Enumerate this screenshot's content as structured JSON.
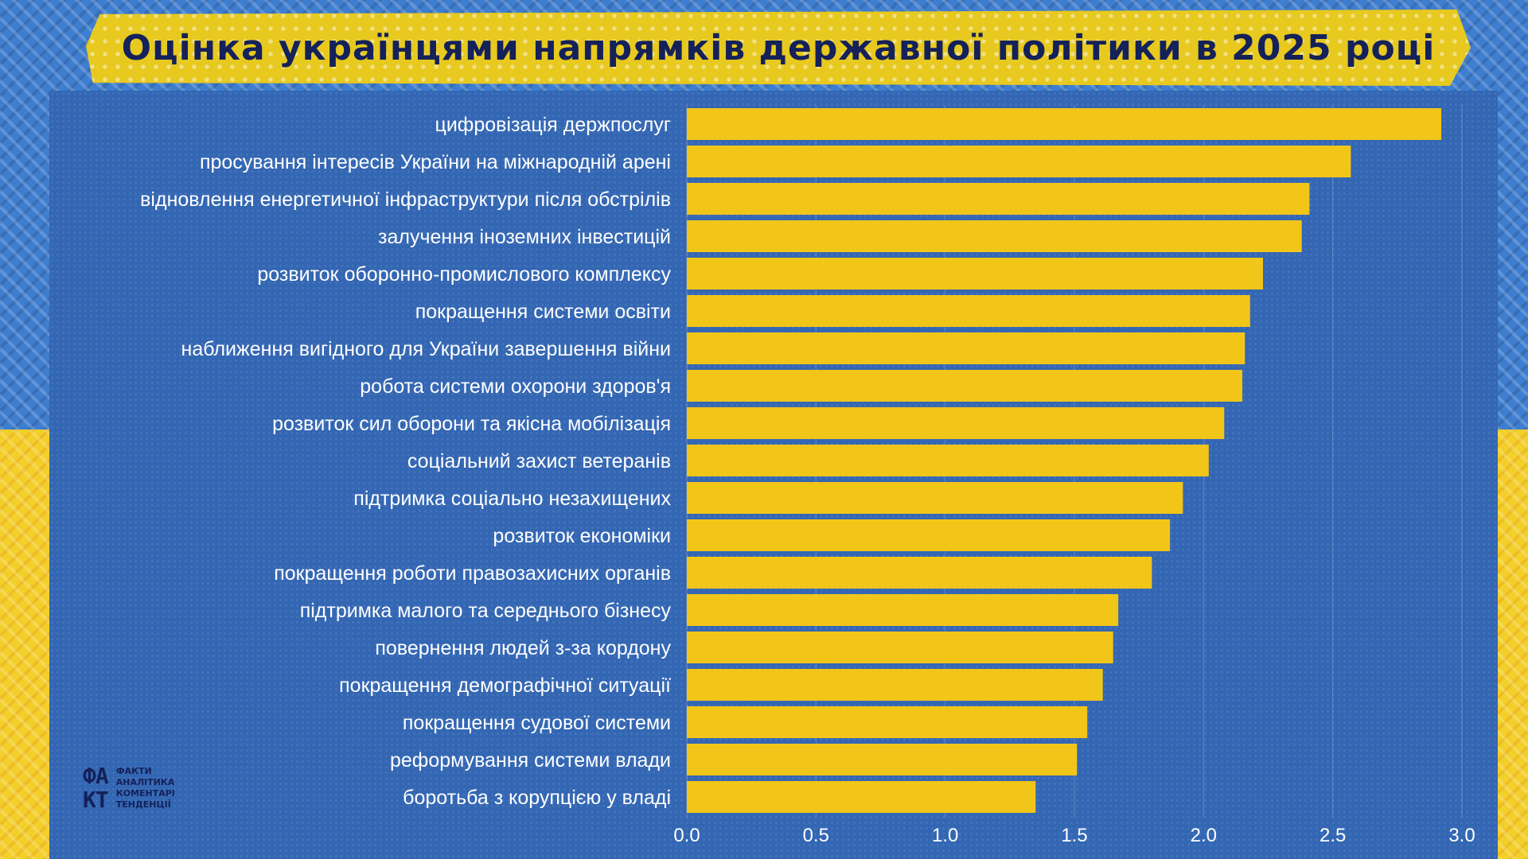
{
  "title": "Оцінка українцями напрямків державної політики в 2025 році",
  "logo": {
    "mark_top": "ФА",
    "mark_bottom": "КТ",
    "words": [
      "ФАКТИ",
      "АНАЛІТИКА",
      "КОМЕНТАРІ",
      "ТЕНДЕНЦІЇ"
    ]
  },
  "colors": {
    "bar": "#f2c519",
    "panel": "#3467b3",
    "title_text": "#14215a"
  },
  "chart_data": {
    "type": "bar",
    "orientation": "horizontal",
    "title": "Оцінка українцями напрямків державної політики в 2025 році",
    "xlabel": "",
    "ylabel": "",
    "xlim": [
      0,
      3.0
    ],
    "xticks": [
      "0.0",
      "0.5",
      "1.0",
      "1.5",
      "2.0",
      "2.5",
      "3.0"
    ],
    "grid": true,
    "categories": [
      "цифровізація держпослуг",
      "просування інтересів України на міжнародній арені",
      "відновлення енергетичної інфраструктури після обстрілів",
      "залучення іноземних інвестицій",
      "розвиток оборонно-промислового комплексу",
      "покращення системи освіти",
      "наближення вигідного для України завершення війни",
      "робота системи охорони здоров'я",
      "розвиток сил оборони та якісна мобілізація",
      "соціальний захист ветеранів",
      "підтримка соціально незахищених",
      "розвиток економіки",
      "покращення роботи правозахисних органів",
      "підтримка малого та середнього бізнесу",
      "повернення людей з-за кордону",
      "покращення демографічної ситуації",
      "покращення судової системи",
      "реформування системи влади",
      "боротьба з корупцією у владі"
    ],
    "values": [
      2.92,
      2.57,
      2.41,
      2.38,
      2.23,
      2.18,
      2.16,
      2.15,
      2.08,
      2.02,
      1.92,
      1.87,
      1.8,
      1.67,
      1.65,
      1.61,
      1.55,
      1.51,
      1.35
    ]
  }
}
